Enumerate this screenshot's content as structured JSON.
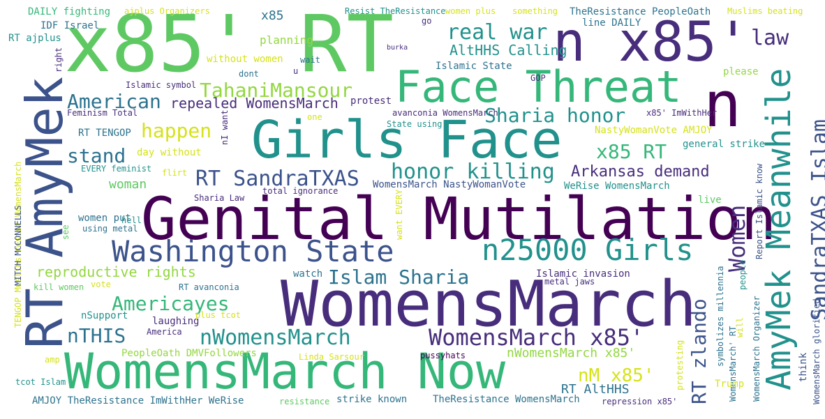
{
  "colors": {
    "yellow": "#d5e21a",
    "lime": "#93d741",
    "green": "#5ec962",
    "emerald": "#35b779",
    "teal": "#21918c",
    "teal_blue": "#2c728e",
    "blue": "#3b528b",
    "indigo": "#472d7b",
    "purple": "#440154"
  },
  "words": [
    "x85' RT",
    "n x85'",
    "Face Threat",
    "n",
    "Girls Face",
    "Genital Mutilation",
    "WomensMarch",
    "WomensMarch Now",
    "RT AmyMek",
    "AmyMek Meanwhile",
    "Washington State",
    "n25000 Girls",
    "SandraTXAS Islam",
    "Women",
    "WomensMarch x85'",
    "nWomensMarch",
    "RT SandraTXAS",
    "honor killing",
    "Sharia honor",
    "x85 RT",
    "Islam Sharia",
    "RT zlando",
    "Americayes",
    "nTHIS",
    "American",
    "stand",
    "happen",
    "TahaniMansour",
    "real war",
    "law",
    "AltHHS Calling",
    "Arkansas demand",
    "nM x85'",
    "repealed WomensMarch",
    "reproductive rights",
    "woman",
    "nWomensMarch x85'",
    "RT AltHHS",
    "DAILY fighting",
    "ajplus Organizers",
    "x85",
    "Resist TheResistance",
    "women plus",
    "something",
    "TheResistance PeopleOath",
    "Muslims beating",
    "IDF Israel",
    "go",
    "line DAILY",
    "RT ajplus",
    "planning",
    "burka",
    "Islamic State",
    "without women",
    "wait",
    "right",
    "dont",
    "u",
    "please",
    "GOP",
    "Islamic symbol",
    "protest",
    "avanconia WomensMarch",
    "Feminism Total",
    "one",
    "State using",
    "x85' ImWithHer",
    "NastyWomanVote AMJOY",
    "RT TENGOP",
    "day without",
    "nI want",
    "general strike",
    "EVERY feminist",
    "flirt",
    "WomensMarch NastyWomanVote",
    "WeRise WomensMarch",
    "total ignorance",
    "Sharia Law",
    "hell",
    "live",
    "women put",
    "using metal",
    "see",
    "want EVERY",
    "Report Islamic know",
    "TENGOP Muslims resist WomensMarch",
    "MITCH MCCONNELLS",
    "watch",
    "Islamic invasion",
    "kill women",
    "vote",
    "RT avanconia",
    "metal jaws",
    "people",
    "nSupport",
    "laughing",
    "plus tcot",
    "America",
    "symbolizes millennia",
    "WomensMarch' RT",
    "WomensMarch Organizer",
    "will",
    "think",
    "WomensMarch glorified",
    "PeopleOath DMVFollowers",
    "Linda Sarsour",
    "pussyhats",
    "amp",
    "protesting",
    "tcot Islam",
    "Trump",
    "AMJOY TheResistance ImWithHer WeRise",
    "resistance",
    "strike known",
    "TheResistance WomensMarch",
    "repression x85'"
  ]
}
